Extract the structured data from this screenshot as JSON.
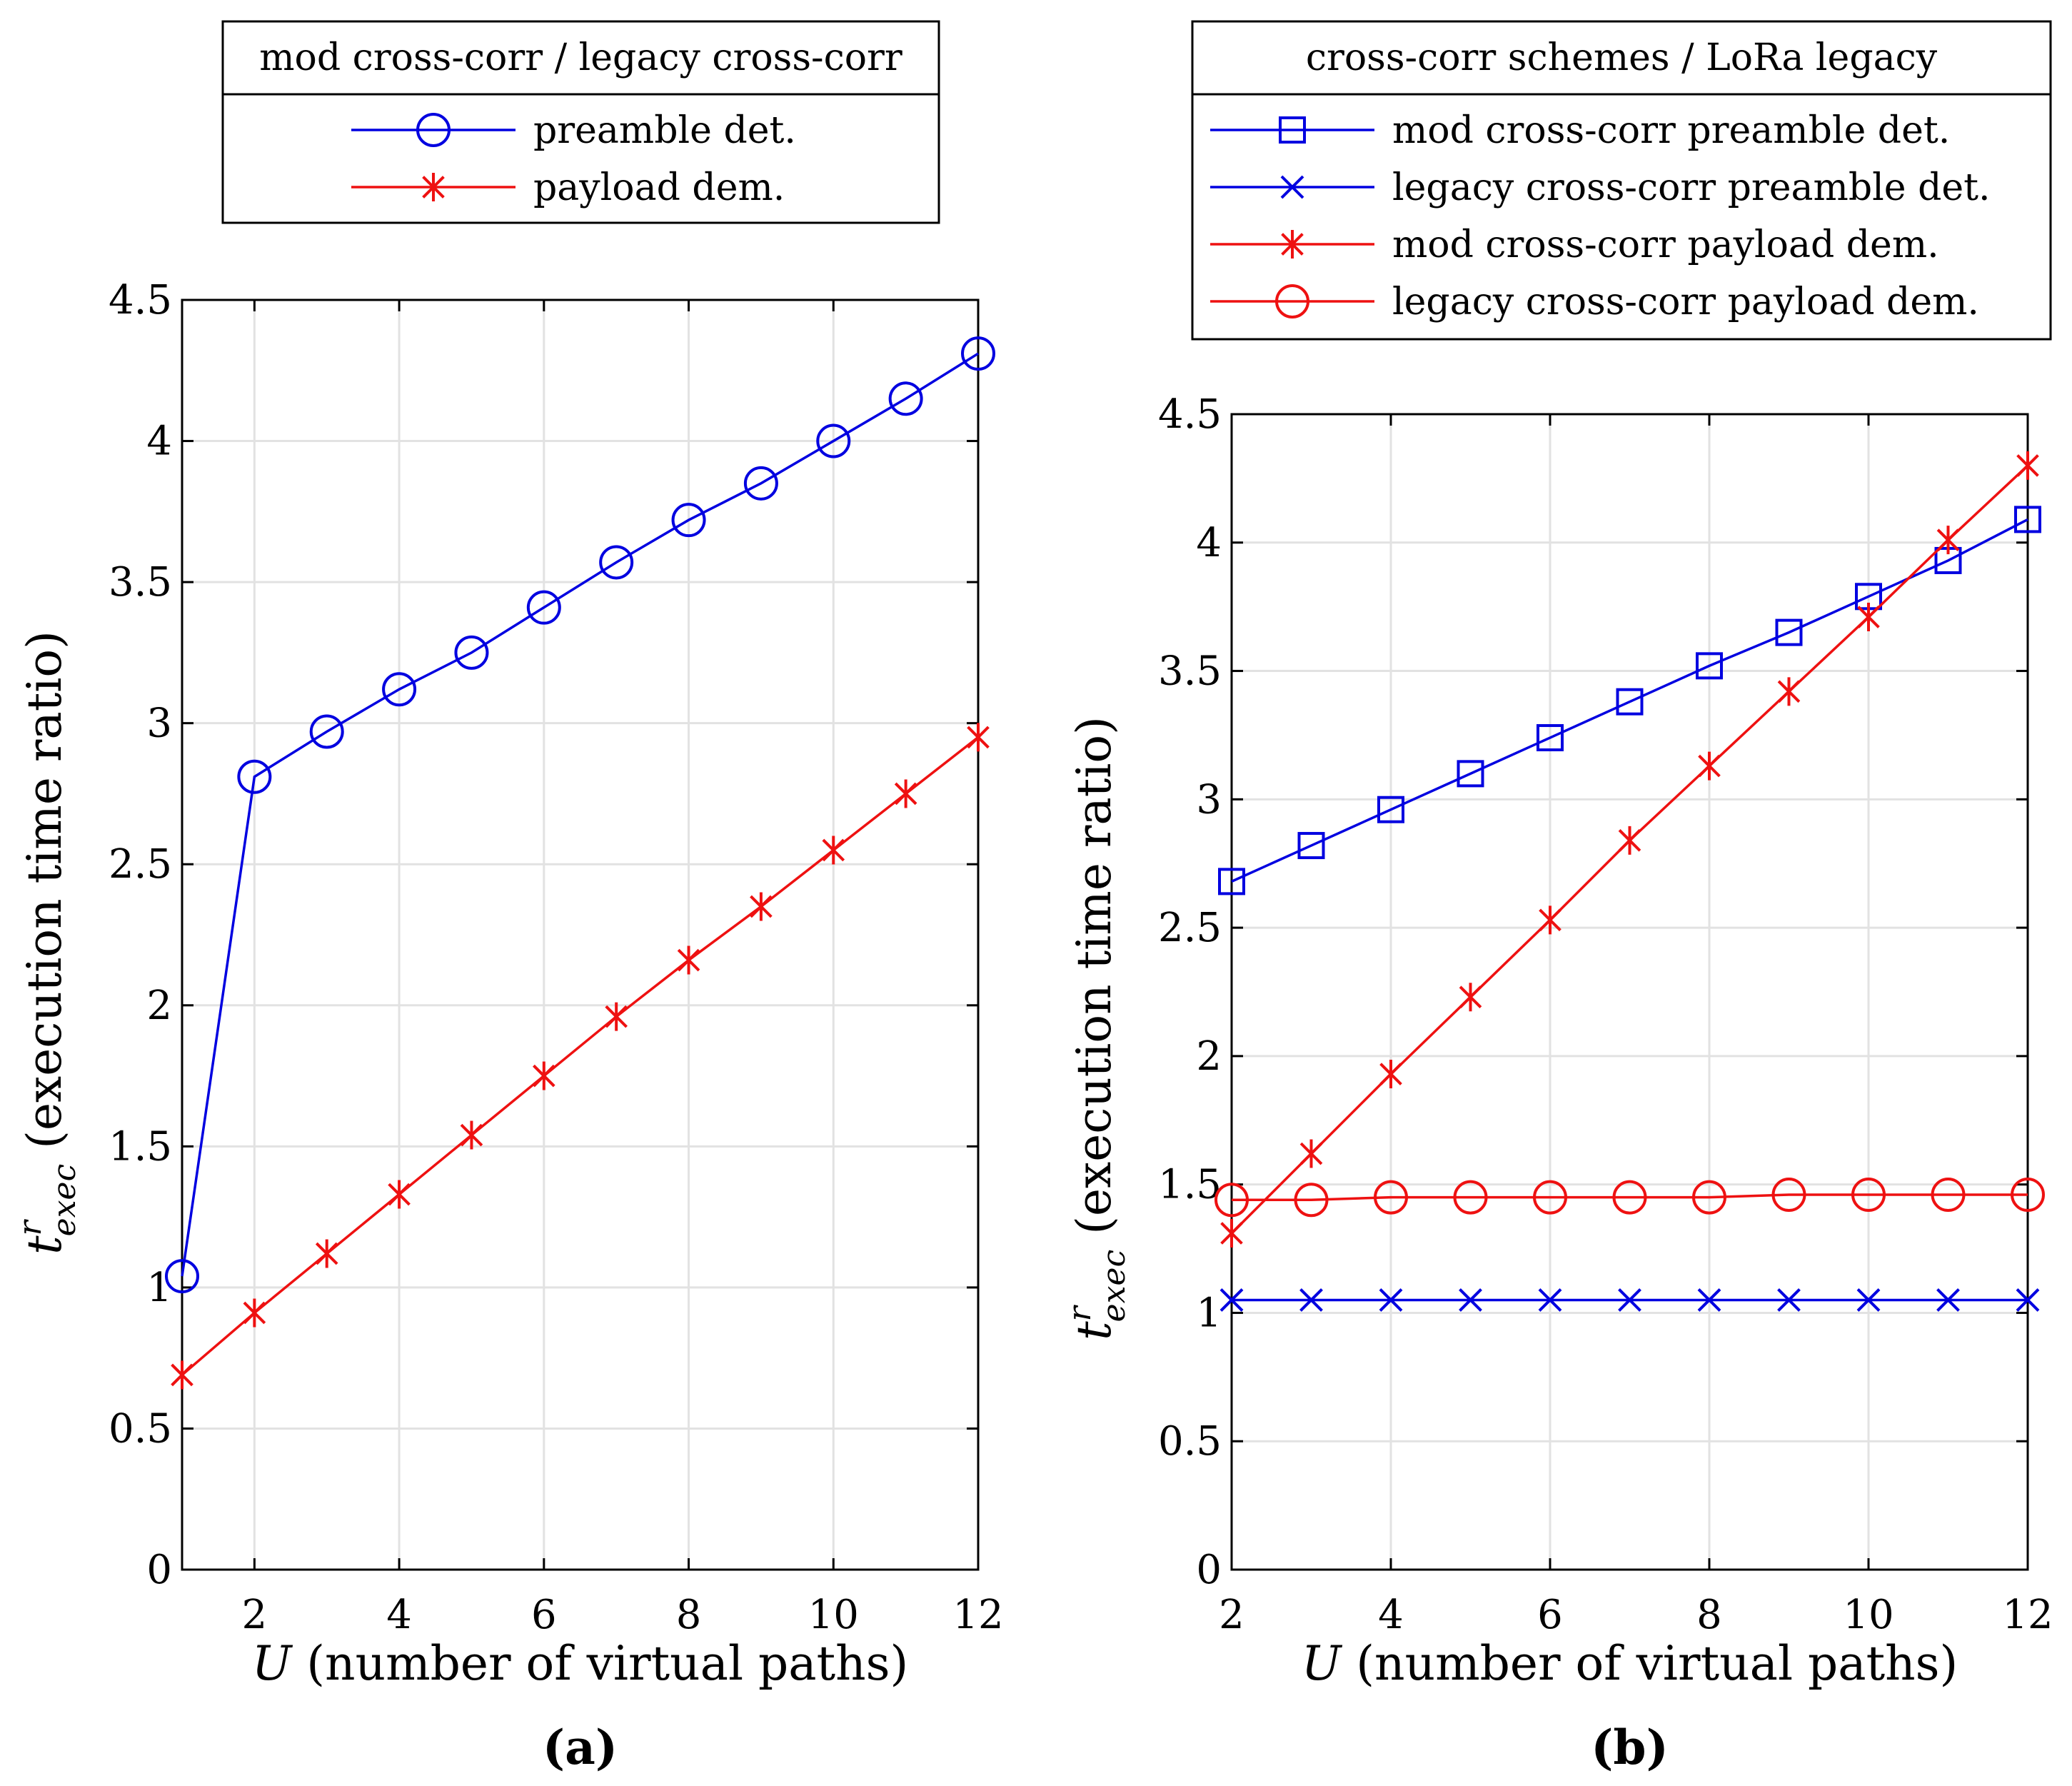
{
  "colors": {
    "blue": "#0000e0",
    "red": "#ee1111",
    "grid": "#e2e2e2",
    "axis": "#000000"
  },
  "chart_data": [
    {
      "id": "a",
      "type": "line",
      "caption": "(a)",
      "legend_title": "mod cross-corr / legacy cross-corr",
      "xlabel_var": "U",
      "xlabel_rest": " (number of virtual paths)",
      "ylabel_base": "t",
      "ylabel_sup": "r",
      "ylabel_sub": "exec",
      "ylabel_rest": " (execution time ratio)",
      "xlim": [
        1,
        12
      ],
      "ylim": [
        0,
        4.5
      ],
      "xticks": [
        2,
        4,
        6,
        8,
        10,
        12
      ],
      "xtick_labels": [
        "2",
        "4",
        "6",
        "8",
        "10",
        "12"
      ],
      "yticks": [
        0,
        0.5,
        1,
        1.5,
        2,
        2.5,
        3,
        3.5,
        4,
        4.5
      ],
      "ytick_labels": [
        "0",
        "0.5",
        "1",
        "1.5",
        "2",
        "2.5",
        "3",
        "3.5",
        "4",
        "4.5"
      ],
      "grid": true,
      "x": [
        1,
        2,
        3,
        4,
        5,
        6,
        7,
        8,
        9,
        10,
        11,
        12
      ],
      "series": [
        {
          "name": "preamble det.",
          "color": "blue",
          "marker": "circle",
          "values": [
            1.04,
            2.81,
            2.97,
            3.12,
            3.25,
            3.41,
            3.57,
            3.72,
            3.85,
            4.0,
            4.15,
            4.31
          ]
        },
        {
          "name": "payload dem.",
          "color": "red",
          "marker": "asterisk",
          "values": [
            0.69,
            0.91,
            1.12,
            1.33,
            1.54,
            1.75,
            1.96,
            2.16,
            2.35,
            2.55,
            2.75,
            2.95
          ]
        }
      ]
    },
    {
      "id": "b",
      "type": "line",
      "caption": "(b)",
      "legend_title": "cross-corr schemes / LoRa legacy",
      "xlabel_var": "U",
      "xlabel_rest": " (number of virtual paths)",
      "ylabel_base": "t",
      "ylabel_sup": "r",
      "ylabel_sub": "exec",
      "ylabel_rest": " (execution time ratio)",
      "xlim": [
        2,
        12
      ],
      "ylim": [
        0,
        4.5
      ],
      "xticks": [
        2,
        4,
        6,
        8,
        10,
        12
      ],
      "xtick_labels": [
        "2",
        "4",
        "6",
        "8",
        "10",
        "12"
      ],
      "yticks": [
        0,
        0.5,
        1,
        1.5,
        2,
        2.5,
        3,
        3.5,
        4,
        4.5
      ],
      "ytick_labels": [
        "0",
        "0.5",
        "1",
        "1.5",
        "2",
        "2.5",
        "3",
        "3.5",
        "4",
        "4.5"
      ],
      "grid": true,
      "x": [
        2,
        3,
        4,
        5,
        6,
        7,
        8,
        9,
        10,
        11,
        12
      ],
      "series": [
        {
          "name": "mod cross-corr preamble det.",
          "color": "blue",
          "marker": "square",
          "values": [
            2.68,
            2.82,
            2.96,
            3.1,
            3.24,
            3.38,
            3.52,
            3.65,
            3.79,
            3.93,
            4.09
          ]
        },
        {
          "name": "legacy cross-corr preamble det.",
          "color": "blue",
          "marker": "cross",
          "values": [
            1.05,
            1.05,
            1.05,
            1.05,
            1.05,
            1.05,
            1.05,
            1.05,
            1.05,
            1.05,
            1.05
          ]
        },
        {
          "name": "mod cross-corr payload dem.",
          "color": "red",
          "marker": "asterisk",
          "values": [
            1.31,
            1.62,
            1.93,
            2.23,
            2.53,
            2.84,
            3.13,
            3.42,
            3.71,
            4.01,
            4.3
          ]
        },
        {
          "name": "legacy cross-corr payload dem.",
          "color": "red",
          "marker": "circle",
          "values": [
            1.44,
            1.44,
            1.45,
            1.45,
            1.45,
            1.45,
            1.45,
            1.46,
            1.46,
            1.46,
            1.46
          ]
        }
      ]
    }
  ]
}
